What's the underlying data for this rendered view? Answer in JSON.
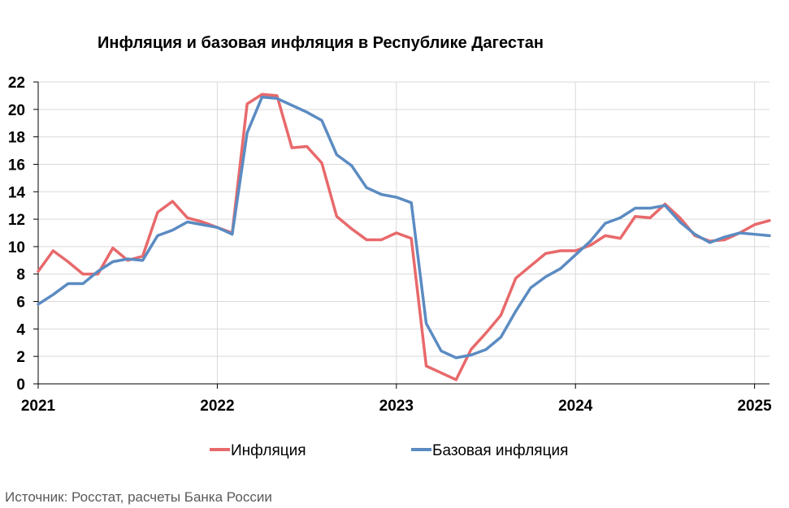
{
  "chart_data": {
    "type": "line",
    "title": "Инфляция и базовая инфляция в Республике Дагестан",
    "xlabel": "",
    "ylabel": "",
    "ylim": [
      0,
      22
    ],
    "yticks": [
      0,
      2,
      4,
      6,
      8,
      10,
      12,
      14,
      16,
      18,
      20,
      22
    ],
    "xlim": [
      "2021-01",
      "2025-02"
    ],
    "xticks": [
      "2021",
      "2022",
      "2023",
      "2024",
      "2025"
    ],
    "grid": true,
    "legend_position": "bottom",
    "x": [
      "2021-01",
      "2021-02",
      "2021-03",
      "2021-04",
      "2021-05",
      "2021-06",
      "2021-07",
      "2021-08",
      "2021-09",
      "2021-10",
      "2021-11",
      "2021-12",
      "2022-01",
      "2022-02",
      "2022-03",
      "2022-04",
      "2022-05",
      "2022-06",
      "2022-07",
      "2022-08",
      "2022-09",
      "2022-10",
      "2022-11",
      "2022-12",
      "2023-01",
      "2023-02",
      "2023-03",
      "2023-04",
      "2023-05",
      "2023-06",
      "2023-07",
      "2023-08",
      "2023-09",
      "2023-10",
      "2023-11",
      "2023-12",
      "2024-01",
      "2024-02",
      "2024-03",
      "2024-04",
      "2024-05",
      "2024-06",
      "2024-07",
      "2024-08",
      "2024-09",
      "2024-10",
      "2024-11",
      "2024-12",
      "2025-01",
      "2025-02"
    ],
    "series": [
      {
        "name": "Инфляция",
        "color": "#E8696B",
        "values": [
          8.2,
          9.7,
          8.9,
          8.0,
          8.0,
          9.9,
          9.0,
          9.3,
          12.5,
          13.3,
          12.1,
          11.8,
          11.4,
          11.0,
          20.4,
          21.1,
          21.0,
          17.2,
          17.3,
          16.1,
          12.2,
          11.3,
          10.5,
          10.5,
          11.0,
          10.6,
          1.3,
          0.8,
          0.3,
          2.5,
          3.7,
          5.0,
          7.7,
          8.6,
          9.5,
          9.7,
          9.7,
          10.1,
          10.8,
          10.6,
          12.2,
          12.1,
          13.1,
          12.1,
          10.8,
          10.4,
          10.5,
          11.0,
          11.6,
          11.9
        ]
      },
      {
        "name": "Базовая инфляция",
        "color": "#5B8BC2",
        "values": [
          5.8,
          6.5,
          7.3,
          7.3,
          8.2,
          8.9,
          9.1,
          9.0,
          10.8,
          11.2,
          11.8,
          11.6,
          11.4,
          10.9,
          18.3,
          20.9,
          20.8,
          20.3,
          19.8,
          19.2,
          16.7,
          15.9,
          14.3,
          13.8,
          13.6,
          13.2,
          4.4,
          2.4,
          1.9,
          2.1,
          2.5,
          3.4,
          5.3,
          7.0,
          7.8,
          8.4,
          9.4,
          10.4,
          11.7,
          12.1,
          12.8,
          12.8,
          13.0,
          11.8,
          10.9,
          10.3,
          10.7,
          11.0,
          10.9,
          10.8
        ]
      }
    ]
  },
  "source": "Источник: Росстат, расчеты Банка России"
}
